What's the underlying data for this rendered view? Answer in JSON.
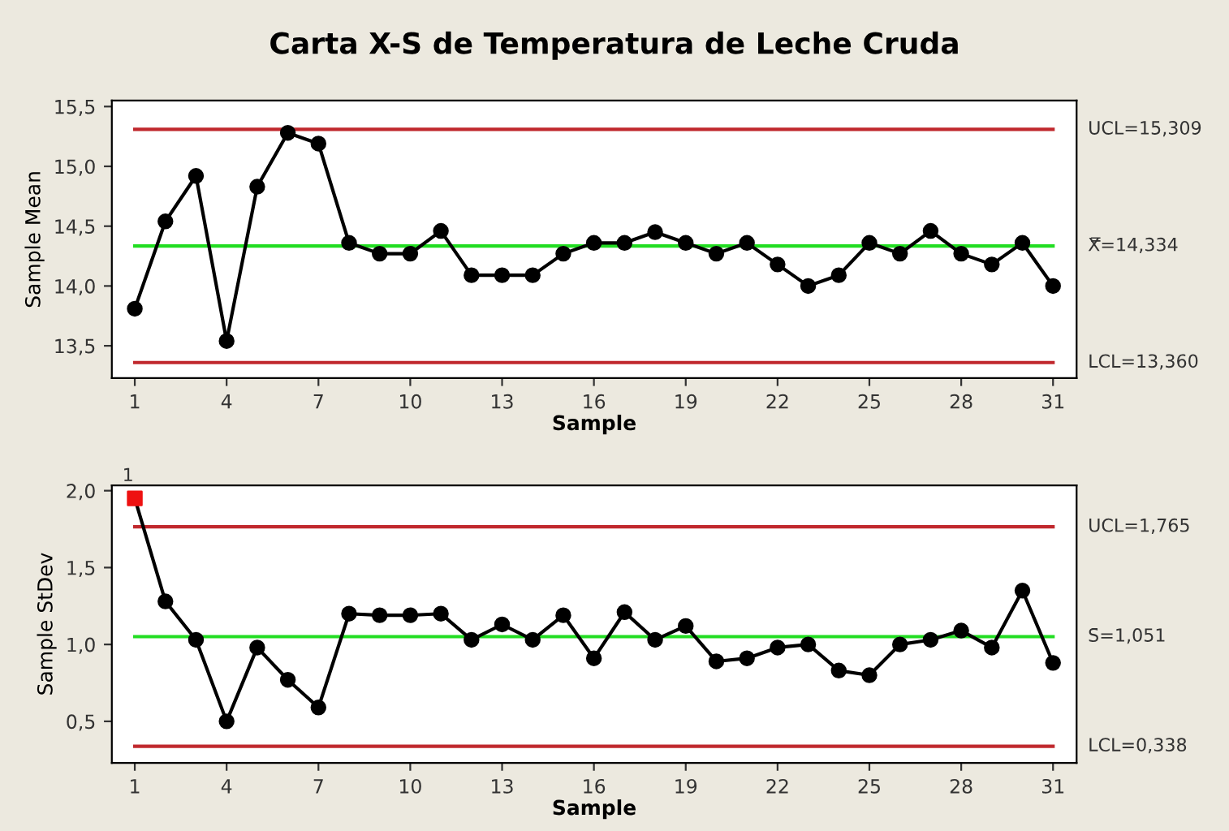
{
  "chart_data": [
    {
      "type": "line",
      "title": "Carta X-S de Temperatura de Leche Cruda",
      "xlabel": "Sample",
      "ylabel": "Sample Mean",
      "xlim": [
        0.25,
        31.77
      ],
      "xticks": [
        1,
        4,
        7,
        10,
        13,
        16,
        19,
        22,
        25,
        28,
        31
      ],
      "ylim": [
        13.23,
        15.55
      ],
      "yticks": [
        {
          "value": 13.5,
          "label": "13,5"
        },
        {
          "value": 14.0,
          "label": "14,0"
        },
        {
          "value": 14.5,
          "label": "14,5"
        },
        {
          "value": 15.0,
          "label": "15,0"
        },
        {
          "value": 15.5,
          "label": "15,5"
        }
      ],
      "grid": false,
      "legend": false,
      "marker": "circle",
      "line_style": "solid",
      "x": [
        1,
        2,
        3,
        4,
        5,
        6,
        7,
        8,
        9,
        10,
        11,
        12,
        13,
        14,
        15,
        16,
        17,
        18,
        19,
        20,
        21,
        22,
        23,
        24,
        25,
        26,
        27,
        28,
        29,
        30,
        31
      ],
      "series": [
        {
          "color": "#000000",
          "values": [
            13.81,
            14.54,
            14.92,
            13.54,
            14.83,
            15.28,
            15.19,
            14.36,
            14.27,
            14.27,
            14.46,
            14.09,
            14.09,
            14.09,
            14.27,
            14.36,
            14.36,
            14.45,
            14.36,
            14.27,
            14.36,
            14.18,
            14.0,
            14.09,
            14.36,
            14.27,
            14.46,
            14.27,
            14.18,
            14.36,
            14.0
          ]
        }
      ],
      "ref_lines": [
        {
          "axis": "y",
          "value": 15.309,
          "label": "UCL=15,309",
          "color": "#c0282d"
        },
        {
          "axis": "y",
          "value": 14.334,
          "label": "X̿=14,334",
          "color": "#22dd22"
        },
        {
          "axis": "y",
          "value": 13.36,
          "label": "LCL=13,360",
          "color": "#c0282d"
        }
      ]
    },
    {
      "type": "line",
      "xlabel": "Sample",
      "ylabel": "Sample StDev",
      "xlim": [
        0.25,
        31.77
      ],
      "xticks": [
        1,
        4,
        7,
        10,
        13,
        16,
        19,
        22,
        25,
        28,
        31
      ],
      "ylim": [
        0.23,
        2.035
      ],
      "yticks": [
        {
          "value": 0.5,
          "label": "0,5"
        },
        {
          "value": 1.0,
          "label": "1,0"
        },
        {
          "value": 1.5,
          "label": "1,5"
        },
        {
          "value": 2.0,
          "label": "2,0"
        }
      ],
      "grid": false,
      "legend": false,
      "line_style": "solid",
      "x": [
        1,
        2,
        3,
        4,
        5,
        6,
        7,
        8,
        9,
        10,
        11,
        12,
        13,
        14,
        15,
        16,
        17,
        18,
        19,
        20,
        21,
        22,
        23,
        24,
        25,
        26,
        27,
        28,
        29,
        30,
        31
      ],
      "series": [
        {
          "color": "#000000",
          "marker": "none",
          "values": [
            1.95,
            1.28,
            1.03,
            0.5,
            0.98,
            0.77,
            0.59,
            1.2,
            1.19,
            1.19,
            1.2,
            1.03,
            1.13,
            1.03,
            1.19,
            0.91,
            1.21,
            1.03,
            1.12,
            0.89,
            0.91,
            0.98,
            1.0,
            0.83,
            0.8,
            1.0,
            1.03,
            1.09,
            0.98,
            1.35,
            0.88
          ]
        },
        {
          "type": "scatter",
          "color": "#000000",
          "marker": "circle",
          "values": [
            null,
            1.28,
            1.03,
            0.5,
            0.98,
            0.77,
            0.59,
            1.2,
            1.19,
            1.19,
            1.2,
            1.03,
            1.13,
            1.03,
            1.19,
            0.91,
            1.21,
            1.03,
            1.12,
            0.89,
            0.91,
            0.98,
            1.0,
            0.83,
            0.8,
            1.0,
            1.03,
            1.09,
            0.98,
            1.35,
            0.88
          ]
        },
        {
          "type": "scatter",
          "color": "#ee1111",
          "marker": "square",
          "values": [
            1.95,
            null,
            null,
            null,
            null,
            null,
            null,
            null,
            null,
            null,
            null,
            null,
            null,
            null,
            null,
            null,
            null,
            null,
            null,
            null,
            null,
            null,
            null,
            null,
            null,
            null,
            null,
            null,
            null,
            null,
            null
          ]
        }
      ],
      "annotations": [
        {
          "text": "1",
          "x": 1,
          "y": 1.95
        }
      ],
      "ref_lines": [
        {
          "axis": "y",
          "value": 1.765,
          "label": "UCL=1,765",
          "color": "#c0282d"
        },
        {
          "axis": "y",
          "value": 1.051,
          "label": "S̄=1,051",
          "color": "#22dd22"
        },
        {
          "axis": "y",
          "value": 0.338,
          "label": "LCL=0,338",
          "color": "#c0282d"
        }
      ]
    }
  ]
}
